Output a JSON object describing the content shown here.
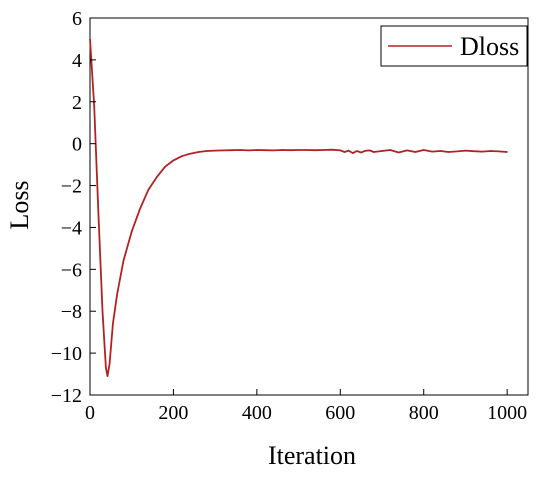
{
  "chart_data": {
    "type": "line",
    "title": "",
    "xlabel": "Iteration",
    "ylabel": "Loss",
    "xlim": [
      0,
      1050
    ],
    "ylim": [
      -12,
      6
    ],
    "xticks": [
      0,
      200,
      400,
      600,
      800,
      1000
    ],
    "xtick_labels": [
      "0",
      "200",
      "400",
      "600",
      "800",
      "1000"
    ],
    "yticks": [
      -12,
      -10,
      -8,
      -6,
      -4,
      -2,
      0,
      2,
      4,
      6
    ],
    "ytick_labels": [
      "−12",
      "−10",
      "−8",
      "−6",
      "−4",
      "−2",
      "0",
      "2",
      "4",
      "6"
    ],
    "grid": false,
    "legend": "top-right",
    "series": [
      {
        "name": "Dloss",
        "color": "#b22222",
        "x": [
          0,
          10,
          20,
          30,
          38,
          42,
          47,
          55,
          65,
          80,
          100,
          120,
          140,
          160,
          180,
          200,
          220,
          240,
          260,
          280,
          300,
          320,
          340,
          360,
          380,
          400,
          420,
          440,
          460,
          480,
          500,
          520,
          540,
          560,
          580,
          600,
          610,
          620,
          630,
          640,
          650,
          660,
          670,
          680,
          700,
          720,
          740,
          760,
          780,
          800,
          820,
          840,
          860,
          880,
          900,
          920,
          940,
          960,
          980,
          1000
        ],
        "y": [
          5.0,
          1.8,
          -3.2,
          -8.0,
          -10.7,
          -11.1,
          -10.5,
          -8.6,
          -7.2,
          -5.6,
          -4.2,
          -3.1,
          -2.2,
          -1.6,
          -1.1,
          -0.8,
          -0.6,
          -0.48,
          -0.4,
          -0.35,
          -0.33,
          -0.32,
          -0.31,
          -0.3,
          -0.32,
          -0.3,
          -0.31,
          -0.32,
          -0.3,
          -0.31,
          -0.3,
          -0.3,
          -0.31,
          -0.3,
          -0.29,
          -0.32,
          -0.4,
          -0.33,
          -0.45,
          -0.35,
          -0.42,
          -0.34,
          -0.32,
          -0.4,
          -0.35,
          -0.3,
          -0.42,
          -0.32,
          -0.4,
          -0.3,
          -0.38,
          -0.35,
          -0.4,
          -0.37,
          -0.33,
          -0.36,
          -0.38,
          -0.35,
          -0.37,
          -0.4
        ]
      }
    ]
  }
}
